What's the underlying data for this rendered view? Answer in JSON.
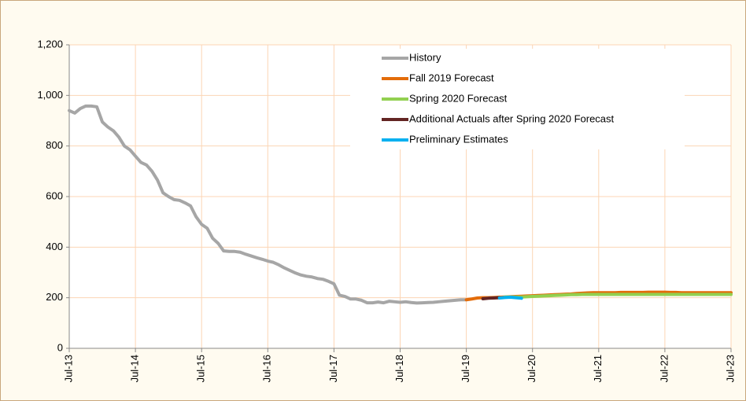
{
  "chart_data": {
    "type": "line",
    "categories": [
      "Jul-13",
      null,
      null,
      null,
      null,
      null,
      null,
      null,
      null,
      null,
      null,
      null,
      "Jul-14",
      null,
      null,
      null,
      null,
      null,
      null,
      null,
      null,
      null,
      null,
      null,
      "Jul-15",
      null,
      null,
      null,
      null,
      null,
      null,
      null,
      null,
      null,
      null,
      null,
      "Jul-16",
      null,
      null,
      null,
      null,
      null,
      null,
      null,
      null,
      null,
      null,
      null,
      "Jul-17",
      null,
      null,
      null,
      null,
      null,
      null,
      null,
      null,
      null,
      null,
      null,
      "Jul-18",
      null,
      null,
      null,
      null,
      null,
      null,
      null,
      null,
      null,
      null,
      null,
      "Jul-19",
      null,
      null,
      null,
      null,
      null,
      null,
      null,
      null,
      null,
      null,
      null,
      "Jul-20",
      null,
      null,
      null,
      null,
      null,
      null,
      null,
      null,
      null,
      null,
      null,
      "Jul-21",
      null,
      null,
      null,
      null,
      null,
      null,
      null,
      null,
      null,
      null,
      null,
      "Jul-22",
      null,
      null,
      null,
      null,
      null,
      null,
      null,
      null,
      null,
      null,
      null,
      "Jul-23"
    ],
    "series": [
      {
        "name": "History",
        "color": "#a6a6a6",
        "values": [
          940,
          930,
          948,
          958,
          958,
          955,
          895,
          875,
          860,
          835,
          800,
          785,
          760,
          735,
          725,
          700,
          665,
          615,
          600,
          588,
          585,
          575,
          563,
          520,
          490,
          475,
          435,
          415,
          385,
          383,
          383,
          380,
          372,
          365,
          358,
          352,
          345,
          340,
          330,
          318,
          308,
          298,
          290,
          285,
          282,
          276,
          273,
          265,
          255,
          210,
          205,
          195,
          195,
          190,
          180,
          180,
          183,
          180,
          186,
          184,
          182,
          184,
          181,
          179,
          180,
          181,
          182,
          184,
          186,
          188,
          190,
          192,
          192,
          null,
          null,
          null,
          null,
          null,
          null,
          null,
          null,
          null,
          null,
          null,
          null,
          null,
          null,
          null,
          null,
          null,
          null,
          null,
          null,
          null,
          null,
          null,
          null,
          null,
          null,
          null,
          null,
          null,
          null,
          null,
          null,
          null,
          null,
          null,
          null,
          null,
          null,
          null,
          null,
          null,
          null,
          null,
          null,
          null,
          null,
          null,
          null
        ]
      },
      {
        "name": "Fall 2019 Forecast",
        "color": "#e36c0a",
        "values": [
          null,
          null,
          null,
          null,
          null,
          null,
          null,
          null,
          null,
          null,
          null,
          null,
          null,
          null,
          null,
          null,
          null,
          null,
          null,
          null,
          null,
          null,
          null,
          null,
          null,
          null,
          null,
          null,
          null,
          null,
          null,
          null,
          null,
          null,
          null,
          null,
          null,
          null,
          null,
          null,
          null,
          null,
          null,
          null,
          null,
          null,
          null,
          null,
          null,
          null,
          null,
          null,
          null,
          null,
          null,
          null,
          null,
          null,
          null,
          null,
          null,
          null,
          null,
          null,
          null,
          null,
          null,
          null,
          null,
          null,
          null,
          null,
          192,
          195,
          199,
          200,
          200,
          201,
          202,
          203,
          204,
          205,
          206,
          207,
          208,
          209,
          210,
          211,
          212,
          213,
          214,
          215,
          217,
          218,
          219,
          220,
          220,
          220,
          220,
          220,
          221,
          221,
          221,
          221,
          221,
          222,
          222,
          222,
          222,
          221,
          221,
          220,
          220,
          220,
          220,
          220,
          220,
          220,
          220,
          220,
          220
        ]
      },
      {
        "name": "Spring 2020 Forecast",
        "color": "#92d050",
        "values": [
          null,
          null,
          null,
          null,
          null,
          null,
          null,
          null,
          null,
          null,
          null,
          null,
          null,
          null,
          null,
          null,
          null,
          null,
          null,
          null,
          null,
          null,
          null,
          null,
          null,
          null,
          null,
          null,
          null,
          null,
          null,
          null,
          null,
          null,
          null,
          null,
          null,
          null,
          null,
          null,
          null,
          null,
          null,
          null,
          null,
          null,
          null,
          null,
          null,
          null,
          null,
          null,
          null,
          null,
          null,
          null,
          null,
          null,
          null,
          null,
          null,
          null,
          null,
          null,
          null,
          null,
          null,
          null,
          null,
          null,
          null,
          null,
          null,
          null,
          null,
          null,
          null,
          null,
          null,
          203,
          203,
          203,
          203,
          204,
          205,
          206,
          207,
          208,
          209,
          210,
          211,
          212,
          212,
          213,
          213,
          213,
          213,
          213,
          213,
          213,
          213,
          213,
          213,
          213,
          213,
          213,
          213,
          213,
          213,
          213,
          213,
          213,
          213,
          213,
          213,
          213,
          213,
          213,
          213,
          213,
          213
        ]
      },
      {
        "name": "Additional Actuals after Spring 2020 Forecast",
        "color": "#632523",
        "values": [
          null,
          null,
          null,
          null,
          null,
          null,
          null,
          null,
          null,
          null,
          null,
          null,
          null,
          null,
          null,
          null,
          null,
          null,
          null,
          null,
          null,
          null,
          null,
          null,
          null,
          null,
          null,
          null,
          null,
          null,
          null,
          null,
          null,
          null,
          null,
          null,
          null,
          null,
          null,
          null,
          null,
          null,
          null,
          null,
          null,
          null,
          null,
          null,
          null,
          null,
          null,
          null,
          null,
          null,
          null,
          null,
          null,
          null,
          null,
          null,
          null,
          null,
          null,
          null,
          null,
          null,
          null,
          null,
          null,
          null,
          null,
          null,
          null,
          null,
          null,
          196,
          198,
          199,
          200,
          null,
          null,
          null,
          null,
          null,
          null,
          null,
          null,
          null,
          null,
          null,
          null,
          null,
          null,
          null,
          null,
          null,
          null,
          null,
          null,
          null,
          null,
          null,
          null,
          null,
          null,
          null,
          null,
          null,
          null,
          null,
          null,
          null,
          null,
          null,
          null,
          null,
          null,
          null,
          null,
          null,
          null
        ]
      },
      {
        "name": "Preliminary Estimates",
        "color": "#00b0f0",
        "values": [
          null,
          null,
          null,
          null,
          null,
          null,
          null,
          null,
          null,
          null,
          null,
          null,
          null,
          null,
          null,
          null,
          null,
          null,
          null,
          null,
          null,
          null,
          null,
          null,
          null,
          null,
          null,
          null,
          null,
          null,
          null,
          null,
          null,
          null,
          null,
          null,
          null,
          null,
          null,
          null,
          null,
          null,
          null,
          null,
          null,
          null,
          null,
          null,
          null,
          null,
          null,
          null,
          null,
          null,
          null,
          null,
          null,
          null,
          null,
          null,
          null,
          null,
          null,
          null,
          null,
          null,
          null,
          null,
          null,
          null,
          null,
          null,
          null,
          null,
          null,
          null,
          null,
          null,
          199,
          201,
          202,
          200,
          198,
          null,
          null,
          null,
          null,
          null,
          null,
          null,
          null,
          null,
          null,
          null,
          null,
          null,
          null,
          null,
          null,
          null,
          null,
          null,
          null,
          null,
          null,
          null,
          null,
          null,
          null,
          null,
          null,
          null,
          null,
          null,
          null,
          null,
          null,
          null,
          null,
          null,
          null
        ]
      }
    ],
    "ylim": [
      0,
      1200
    ],
    "yticks": [
      0,
      200,
      400,
      600,
      800,
      {
        "value": 1000,
        "label": "1,000"
      },
      {
        "value": 1200,
        "label": "1,200"
      }
    ],
    "grid": true,
    "legend": "upper right"
  }
}
